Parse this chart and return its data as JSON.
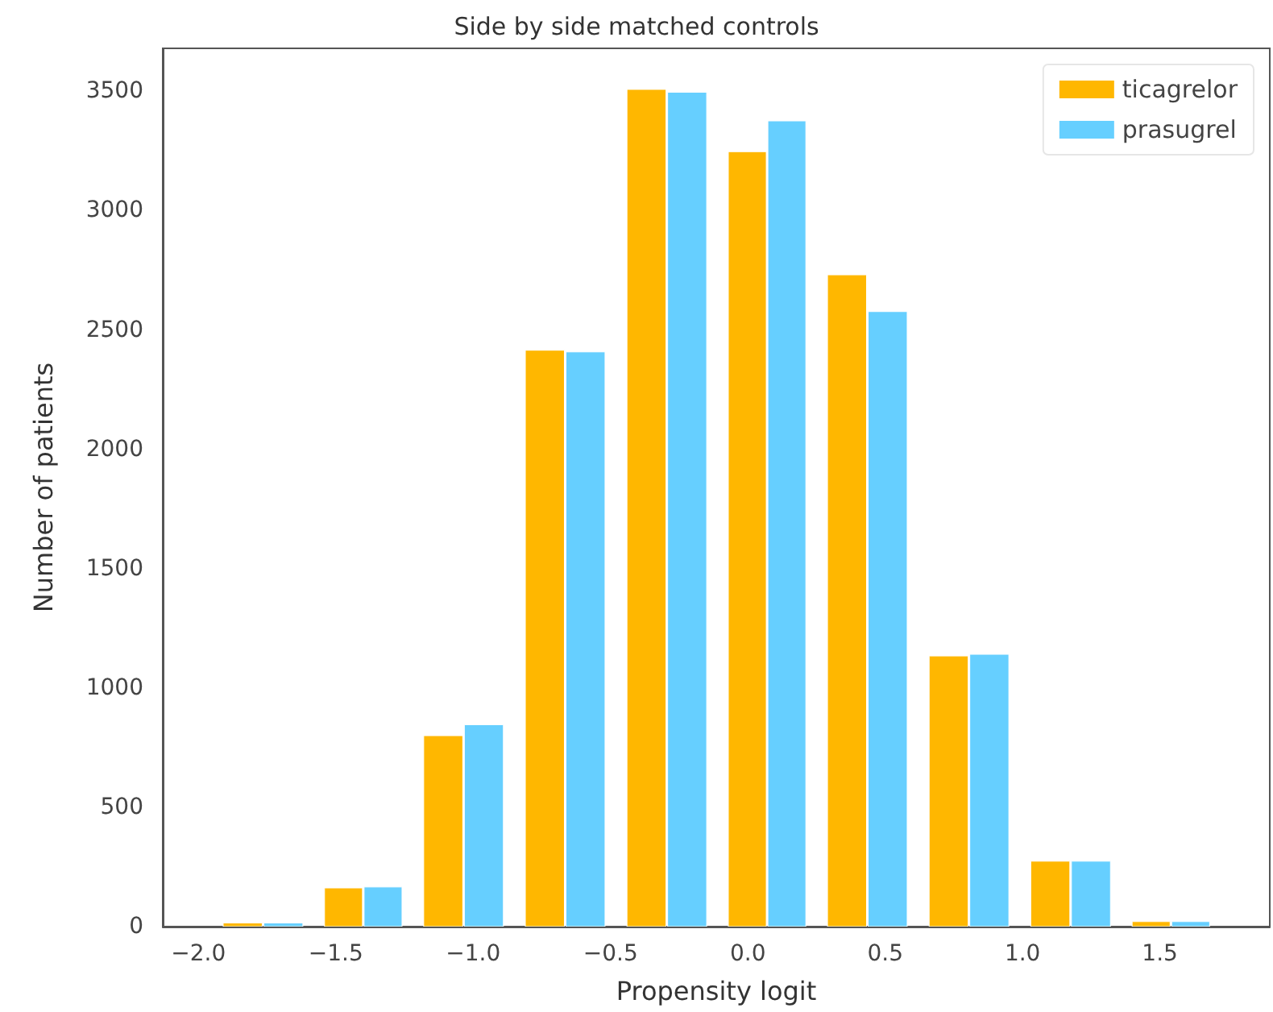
{
  "chart_data": {
    "type": "histogram",
    "title": "Side by side matched controls",
    "xlabel": "Propensity logit",
    "ylabel": "Number of patients",
    "bins": [
      -1.95,
      -1.58,
      -1.22,
      -0.85,
      -0.48,
      -0.11,
      0.25,
      0.62,
      0.99,
      1.36,
      1.72
    ],
    "series": [
      {
        "name": "ticagrelor",
        "color": "#ffb700",
        "values": [
          15,
          162,
          800,
          2415,
          3508,
          3247,
          2731,
          1134,
          274,
          21
        ]
      },
      {
        "name": "prasugrel",
        "color": "#66cfff",
        "values": [
          15,
          166,
          846,
          2408,
          3496,
          3376,
          2577,
          1141,
          274,
          21
        ]
      }
    ],
    "xlim": [
      -2.13,
      1.9
    ],
    "ylim": [
      0,
      3680
    ],
    "xticks": [
      {
        "value": -2,
        "label": "−2.0"
      },
      {
        "value": -1.5,
        "label": "−1.5"
      },
      {
        "value": -1,
        "label": "−1.0"
      },
      {
        "value": -0.5,
        "label": "−0.5"
      },
      {
        "value": 0,
        "label": "0.0"
      },
      {
        "value": 0.5,
        "label": "0.5"
      },
      {
        "value": 1,
        "label": "1.0"
      },
      {
        "value": 1.5,
        "label": "1.5"
      }
    ],
    "yticks": [
      0,
      500,
      1000,
      1500,
      2000,
      2500,
      3000,
      3500
    ],
    "legend": "top right",
    "grid": false
  }
}
